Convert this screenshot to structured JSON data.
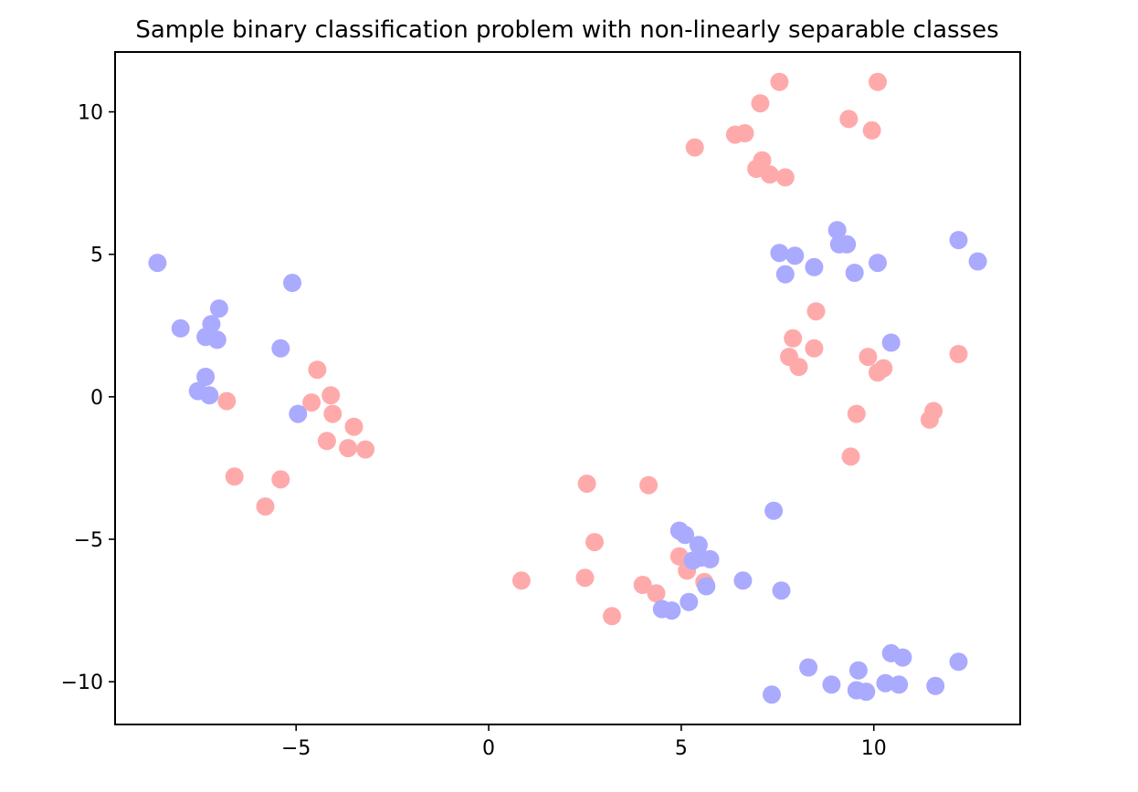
{
  "chart_data": {
    "type": "scatter",
    "title": "Sample binary classification problem with non-linearly separable classes",
    "xlabel": "",
    "ylabel": "",
    "xlim": [
      -9.7,
      13.8
    ],
    "ylim": [
      -11.5,
      12.1
    ],
    "xticks": [
      -5,
      0,
      5,
      10
    ],
    "yticks": [
      -10,
      -5,
      0,
      5,
      10
    ],
    "xtick_labels": [
      "−5",
      "0",
      "5",
      "10"
    ],
    "ytick_labels": [
      "−10",
      "−5",
      "0",
      "5",
      "10"
    ],
    "grid": false,
    "legend": "none",
    "series": [
      {
        "color": "#ffaaaa",
        "points": [
          [
            7.55,
            11.05
          ],
          [
            10.1,
            11.05
          ],
          [
            7.05,
            10.3
          ],
          [
            9.35,
            9.75
          ],
          [
            9.95,
            9.35
          ],
          [
            6.4,
            9.2
          ],
          [
            6.65,
            9.25
          ],
          [
            5.35,
            8.75
          ],
          [
            7.1,
            8.3
          ],
          [
            6.95,
            8.0
          ],
          [
            7.3,
            7.8
          ],
          [
            7.7,
            7.7
          ],
          [
            8.5,
            3.0
          ],
          [
            7.9,
            2.05
          ],
          [
            8.45,
            1.7
          ],
          [
            7.8,
            1.4
          ],
          [
            8.05,
            1.05
          ],
          [
            9.85,
            1.4
          ],
          [
            10.25,
            1.0
          ],
          [
            10.1,
            0.85
          ],
          [
            12.2,
            1.5
          ],
          [
            11.55,
            -0.5
          ],
          [
            11.45,
            -0.8
          ],
          [
            9.55,
            -0.6
          ],
          [
            9.4,
            -2.1
          ],
          [
            -4.45,
            0.95
          ],
          [
            -4.6,
            -0.2
          ],
          [
            -4.1,
            0.05
          ],
          [
            -4.05,
            -0.6
          ],
          [
            -3.5,
            -1.05
          ],
          [
            -4.2,
            -1.55
          ],
          [
            -3.65,
            -1.8
          ],
          [
            -3.2,
            -1.85
          ],
          [
            -6.8,
            -0.15
          ],
          [
            -6.6,
            -2.8
          ],
          [
            -5.4,
            -2.9
          ],
          [
            -5.8,
            -3.85
          ],
          [
            2.55,
            -3.05
          ],
          [
            4.15,
            -3.1
          ],
          [
            2.75,
            -5.1
          ],
          [
            0.85,
            -6.45
          ],
          [
            2.5,
            -6.35
          ],
          [
            4.0,
            -6.6
          ],
          [
            4.35,
            -6.9
          ],
          [
            3.2,
            -7.7
          ],
          [
            4.95,
            -5.6
          ],
          [
            5.15,
            -6.1
          ],
          [
            5.6,
            -6.5
          ]
        ]
      },
      {
        "color": "#aaaaff",
        "points": [
          [
            -8.6,
            4.7
          ],
          [
            -5.1,
            4.0
          ],
          [
            -7.0,
            3.1
          ],
          [
            -8.0,
            2.4
          ],
          [
            -7.2,
            2.55
          ],
          [
            -7.35,
            2.1
          ],
          [
            -7.05,
            2.0
          ],
          [
            -5.4,
            1.7
          ],
          [
            -7.35,
            0.7
          ],
          [
            -7.55,
            0.2
          ],
          [
            -7.25,
            0.05
          ],
          [
            -4.95,
            -0.6
          ],
          [
            9.05,
            5.85
          ],
          [
            9.1,
            5.35
          ],
          [
            9.3,
            5.35
          ],
          [
            7.55,
            5.05
          ],
          [
            7.95,
            4.95
          ],
          [
            8.45,
            4.55
          ],
          [
            7.7,
            4.3
          ],
          [
            9.5,
            4.35
          ],
          [
            10.1,
            4.7
          ],
          [
            12.2,
            5.5
          ],
          [
            12.7,
            4.75
          ],
          [
            10.45,
            1.9
          ],
          [
            7.4,
            -4.0
          ],
          [
            4.95,
            -4.7
          ],
          [
            5.1,
            -4.85
          ],
          [
            5.45,
            -5.2
          ],
          [
            5.3,
            -5.75
          ],
          [
            5.5,
            -5.65
          ],
          [
            5.75,
            -5.7
          ],
          [
            5.65,
            -6.65
          ],
          [
            6.6,
            -6.45
          ],
          [
            7.6,
            -6.8
          ],
          [
            5.2,
            -7.2
          ],
          [
            4.5,
            -7.45
          ],
          [
            4.75,
            -7.5
          ],
          [
            8.3,
            -9.5
          ],
          [
            7.35,
            -10.45
          ],
          [
            8.9,
            -10.1
          ],
          [
            9.6,
            -9.6
          ],
          [
            9.55,
            -10.3
          ],
          [
            9.8,
            -10.35
          ],
          [
            10.3,
            -10.05
          ],
          [
            10.65,
            -10.1
          ],
          [
            10.45,
            -9.0
          ],
          [
            10.75,
            -9.15
          ],
          [
            11.6,
            -10.15
          ],
          [
            12.2,
            -9.3
          ]
        ]
      }
    ]
  }
}
